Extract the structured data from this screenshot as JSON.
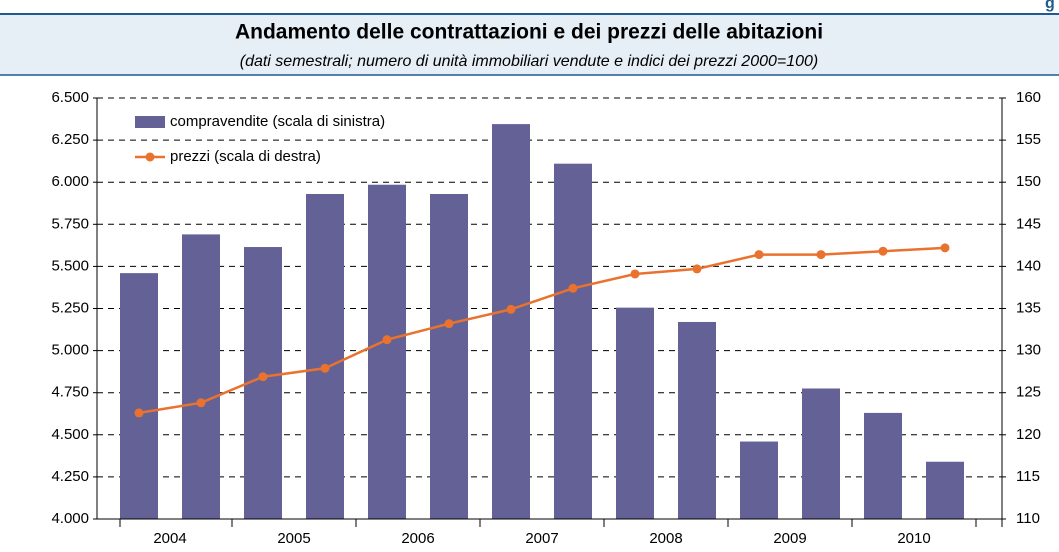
{
  "corner_label": "g",
  "chart_data": {
    "type": "bar_line",
    "title": "Andamento delle contrattazioni e dei prezzi delle abitazioni",
    "subtitle": "(dati semestrali; numero di unità immobiliari vendute e indici dei prezzi 2000=100)",
    "categories": [
      "2004",
      null,
      "2005",
      null,
      "2006",
      null,
      "2007",
      null,
      "2008",
      null,
      "2009",
      null,
      "2010",
      null
    ],
    "series": [
      {
        "name": "compravendite (scala di sinistra)",
        "type": "bar",
        "color": "#636196",
        "values": [
          5460,
          5690,
          5615,
          5930,
          5985,
          5930,
          6345,
          6110,
          5255,
          5170,
          4460,
          4775,
          4630,
          4340
        ]
      },
      {
        "name": "prezzi (scala di destra)",
        "type": "line",
        "axis": "y2",
        "color": "#e9722e",
        "values": [
          122.6,
          123.8,
          126.9,
          127.9,
          131.3,
          133.2,
          134.9,
          137.4,
          139.1,
          139.7,
          141.4,
          141.4,
          141.8,
          142.2
        ]
      }
    ],
    "ylim": [
      4000,
      6500
    ],
    "yticks": [
      {
        "value": 4000,
        "label": "4.000"
      },
      {
        "value": 4250,
        "label": "4.250"
      },
      {
        "value": 4500,
        "label": "4.500"
      },
      {
        "value": 4750,
        "label": "4.750"
      },
      {
        "value": 5000,
        "label": "5.000"
      },
      {
        "value": 5250,
        "label": "5.250"
      },
      {
        "value": 5500,
        "label": "5.500"
      },
      {
        "value": 5750,
        "label": "5.750"
      },
      {
        "value": 6000,
        "label": "6.000"
      },
      {
        "value": 6250,
        "label": "6.250"
      },
      {
        "value": 6500,
        "label": "6.500"
      }
    ],
    "y2lim": [
      110,
      160
    ],
    "y2ticks": [
      110,
      115,
      120,
      125,
      130,
      135,
      140,
      145,
      150,
      155,
      160
    ],
    "grid": true,
    "legend": "top-left"
  }
}
